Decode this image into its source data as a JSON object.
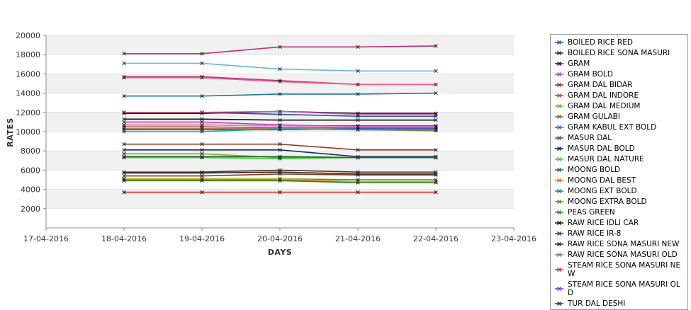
{
  "chart_data": {
    "type": "line",
    "xlabel": "DAYS",
    "ylabel": "RATES",
    "x_ticks": [
      "17-04-2016",
      "18-04-2016",
      "19-04-2016",
      "20-04-2016",
      "21-04-2016",
      "22-04-2016",
      "23-04-2016"
    ],
    "x": [
      "18-04-2016",
      "19-04-2016",
      "20-04-2016",
      "21-04-2016",
      "22-04-2016"
    ],
    "ylim": [
      0,
      20000
    ],
    "y_ticks": [
      2000,
      4000,
      6000,
      8000,
      10000,
      12000,
      14000,
      16000,
      18000,
      20000
    ],
    "grid": true,
    "legend_position": "right",
    "series": [
      {
        "name": "BOILED RICE RED",
        "color": "#1f4fd1",
        "values": [
          12000,
          12000,
          11800,
          11600,
          11600
        ]
      },
      {
        "name": "BOILED RICE SONA MASURI",
        "color": "#0f2f5f",
        "values": [
          8100,
          8100,
          8100,
          7400,
          7400
        ]
      },
      {
        "name": "GRAM",
        "color": "#101058",
        "values": [
          11900,
          11900,
          12100,
          11900,
          11900
        ]
      },
      {
        "name": "GRAM BOLD",
        "color": "#c838c8",
        "values": [
          11000,
          11000,
          10700,
          10500,
          10400
        ]
      },
      {
        "name": "GRAM DAL BIDAR",
        "color": "#8b3a10",
        "values": [
          5400,
          5400,
          5600,
          5500,
          5500
        ]
      },
      {
        "name": "GRAM DAL INDORE",
        "color": "#c0307a",
        "values": [
          18100,
          18100,
          18800,
          18800,
          18900
        ]
      },
      {
        "name": "GRAM DAL MEDIUM",
        "color": "#7ab33a",
        "values": [
          7700,
          7700,
          7300,
          7300,
          7300
        ]
      },
      {
        "name": "GRAM GULABI",
        "color": "#a05a2c",
        "values": [
          10500,
          10500,
          10400,
          10400,
          10400
        ]
      },
      {
        "name": "GRAM KABUL EXT BOLD",
        "color": "#2563c9",
        "values": [
          10200,
          10200,
          10200,
          10300,
          10300
        ]
      },
      {
        "name": "MASUR DAL",
        "color": "#9a3a1e",
        "values": [
          8700,
          8700,
          8700,
          8100,
          8100
        ]
      },
      {
        "name": "MASUR DAL BOLD",
        "color": "#0a1f5a",
        "values": [
          7400,
          7400,
          7400,
          7300,
          7300
        ]
      },
      {
        "name": "MASUR DAL NATURE",
        "color": "#3ec83e",
        "values": [
          7300,
          7300,
          7200,
          7300,
          7300
        ]
      },
      {
        "name": "MOONG BOLD",
        "color": "#1f6f1f",
        "values": [
          7400,
          7400,
          7400,
          7300,
          7300
        ]
      },
      {
        "name": "MOONG DAL BEST",
        "color": "#c77a12",
        "values": [
          5000,
          5000,
          5000,
          4800,
          4800
        ]
      },
      {
        "name": "MOONG EXT BOLD",
        "color": "#1f7a9a",
        "values": [
          13700,
          13700,
          13900,
          13900,
          14000
        ]
      },
      {
        "name": "MOONG EXTRA BOLD",
        "color": "#5a8a1e",
        "values": [
          5100,
          5100,
          5100,
          5000,
          5000
        ]
      },
      {
        "name": "PEAS GREEN",
        "color": "#1e8f1e",
        "values": [
          4900,
          4900,
          4900,
          4700,
          4700
        ]
      },
      {
        "name": "RAW RICE IDLI CAR",
        "color": "#111111",
        "values": [
          11300,
          11300,
          11200,
          11200,
          11200
        ]
      },
      {
        "name": "RAW RICE IR-8",
        "color": "#2a2acf",
        "values": [
          3700,
          3700,
          3700,
          3700,
          3700
        ]
      },
      {
        "name": "RAW RICE SONA MASURI NEW",
        "color": "#222a3a",
        "values": [
          5700,
          5700,
          5800,
          5600,
          5600
        ]
      },
      {
        "name": "RAW RICE SONA MASURI OLD",
        "color": "#b0703a",
        "values": [
          10300,
          10300,
          10300,
          10200,
          10100
        ]
      },
      {
        "name": "STEAM RICE SONA MASURI NEW",
        "color": "#b03a6a",
        "values": [
          15700,
          15700,
          15300,
          14900,
          14900
        ]
      },
      {
        "name": "STEAM RICE SONA MASURI OLD",
        "color": "#8a30c8",
        "values": [
          10700,
          10700,
          10600,
          10600,
          10600
        ]
      },
      {
        "name": "TUR DAL DESHI",
        "color": "#4a2a1a",
        "values": [
          5800,
          5800,
          6000,
          5800,
          5800
        ]
      },
      {
        "name": "",
        "color": "#67b7e0",
        "values": [
          17100,
          17100,
          16500,
          16300,
          16300
        ]
      },
      {
        "name": "",
        "color": "#f0568a",
        "values": [
          15600,
          15600,
          15200,
          14900,
          14900
        ]
      },
      {
        "name": "",
        "color": "#d65a8a",
        "values": [
          12000,
          12000,
          12100,
          11800,
          11800
        ]
      },
      {
        "name": "",
        "color": "#2aa0b0",
        "values": [
          10000,
          10000,
          10300,
          10200,
          10200
        ]
      },
      {
        "name": "",
        "color": "#e03a3a",
        "values": [
          3700,
          3700,
          3700,
          3700,
          3700
        ]
      },
      {
        "name": "",
        "color": "#d4a020",
        "values": [
          5100,
          5100,
          5100,
          4800,
          4800
        ]
      },
      {
        "name": "",
        "color": "#ee7acb",
        "values": [
          10700,
          10700,
          10600,
          10500,
          10500
        ]
      }
    ]
  }
}
